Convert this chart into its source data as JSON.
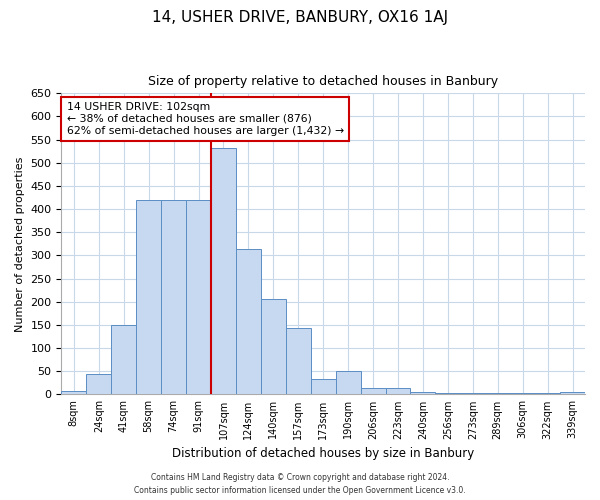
{
  "title": "14, USHER DRIVE, BANBURY, OX16 1AJ",
  "subtitle": "Size of property relative to detached houses in Banbury",
  "xlabel": "Distribution of detached houses by size in Banbury",
  "ylabel": "Number of detached properties",
  "bar_labels": [
    "8sqm",
    "24sqm",
    "41sqm",
    "58sqm",
    "74sqm",
    "91sqm",
    "107sqm",
    "124sqm",
    "140sqm",
    "157sqm",
    "173sqm",
    "190sqm",
    "206sqm",
    "223sqm",
    "240sqm",
    "256sqm",
    "273sqm",
    "289sqm",
    "306sqm",
    "322sqm",
    "339sqm"
  ],
  "bar_values": [
    8,
    45,
    150,
    420,
    420,
    420,
    533,
    315,
    205,
    143,
    33,
    50,
    14,
    13,
    5,
    3,
    3,
    3,
    3,
    3,
    5
  ],
  "bar_color": "#c6d9f0",
  "bar_edge_color": "#5b8ec4",
  "red_line_index": 6,
  "annotation_text": "14 USHER DRIVE: 102sqm\n← 38% of detached houses are smaller (876)\n62% of semi-detached houses are larger (1,432) →",
  "annotation_box_color": "#ffffff",
  "annotation_box_edge": "#cc0000",
  "ylim": [
    0,
    650
  ],
  "yticks": [
    0,
    50,
    100,
    150,
    200,
    250,
    300,
    350,
    400,
    450,
    500,
    550,
    600,
    650
  ],
  "red_line_color": "#cc0000",
  "footer1": "Contains HM Land Registry data © Crown copyright and database right 2024.",
  "footer2": "Contains public sector information licensed under the Open Government Licence v3.0.",
  "bg_color": "#ffffff",
  "grid_color": "#c8d8e8"
}
